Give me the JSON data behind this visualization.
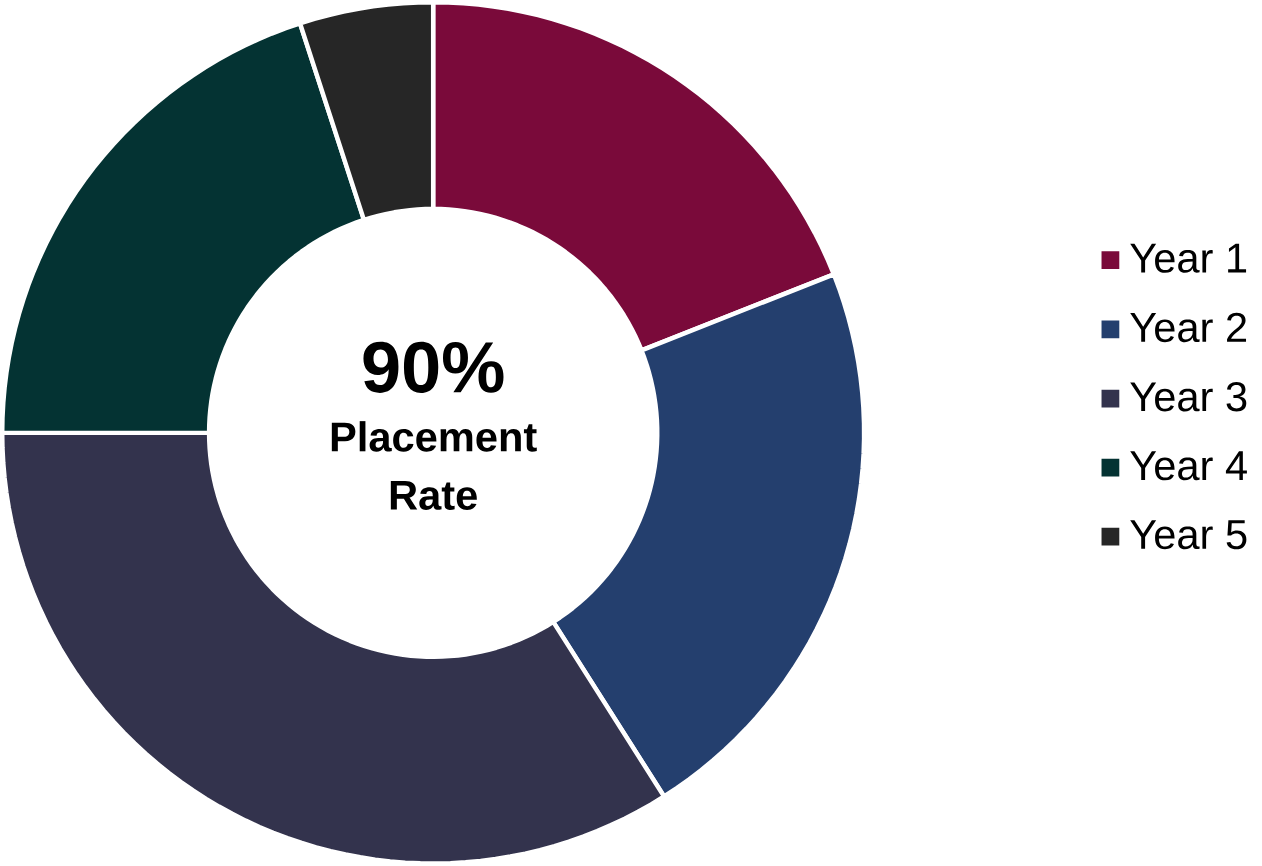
{
  "chart_data": {
    "type": "donut",
    "categories": [
      "Year 1",
      "Year 2",
      "Year 3",
      "Year 4",
      "Year 5"
    ],
    "values": [
      19,
      22,
      34,
      20,
      5
    ],
    "colors": [
      "#7a0a3a",
      "#243f6e",
      "#33334d",
      "#043333",
      "#262626"
    ],
    "annotations": [
      "90%",
      "Placement Rate"
    ],
    "legend": "right"
  }
}
